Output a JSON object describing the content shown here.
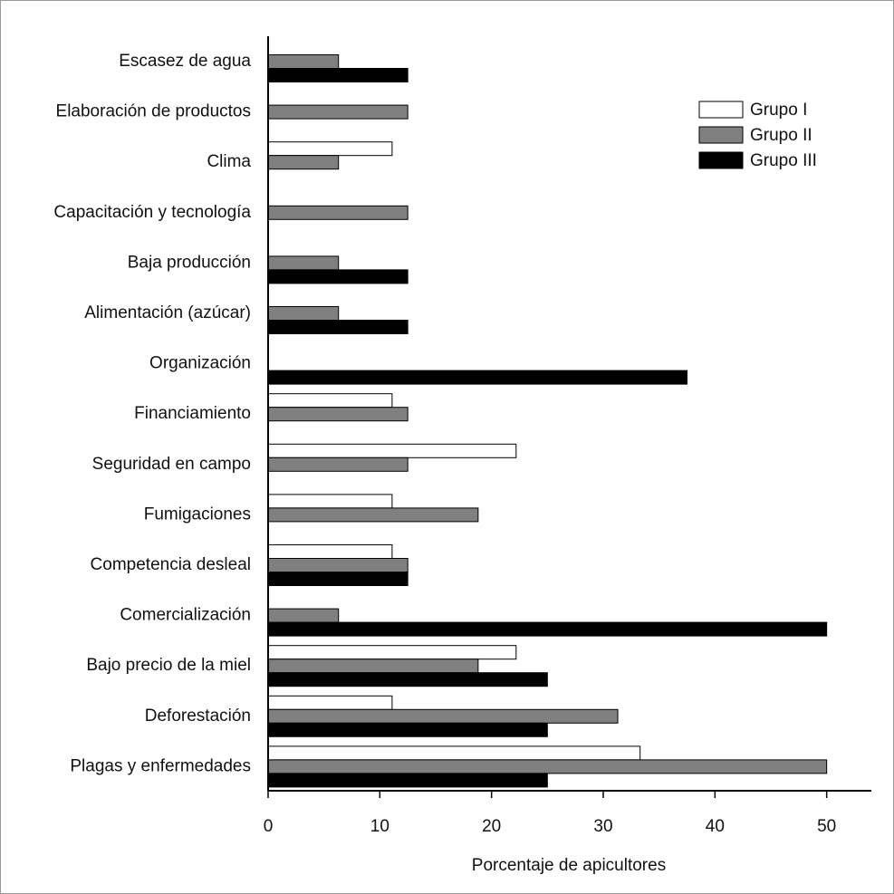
{
  "chart_data": {
    "type": "barh",
    "categories": [
      "Escasez de agua",
      "Elaboración de productos",
      "Clima",
      "Capacitación y tecnología",
      "Baja producción",
      "Alimentación (azúcar)",
      "Organización",
      "Financiamiento",
      "Seguridad en campo",
      "Fumigaciones",
      "Competencia desleal",
      "Comercialización",
      "Bajo precio de la miel",
      "Deforestación",
      "Plagas y enfermedades"
    ],
    "series": [
      {
        "name": "Grupo I",
        "color": "#ffffff",
        "values": [
          0,
          0,
          11.1,
          0,
          0,
          0,
          0,
          11.1,
          22.2,
          11.1,
          11.1,
          0,
          22.2,
          11.1,
          33.3
        ]
      },
      {
        "name": "Grupo II",
        "color": "#808080",
        "values": [
          6.3,
          12.5,
          6.3,
          12.5,
          6.3,
          6.3,
          0,
          12.5,
          12.5,
          18.8,
          12.5,
          6.3,
          18.8,
          31.3,
          50
        ]
      },
      {
        "name": "Grupo III",
        "color": "#000000",
        "values": [
          12.5,
          0,
          0,
          0,
          12.5,
          12.5,
          37.5,
          0,
          0,
          0,
          12.5,
          50,
          25,
          25,
          25
        ]
      }
    ],
    "xlabel": "Porcentaje de apicultores",
    "xlim": [
      0,
      54
    ],
    "xticks": [
      0,
      10,
      20,
      30,
      40,
      50
    ],
    "legend": "upper right"
  }
}
